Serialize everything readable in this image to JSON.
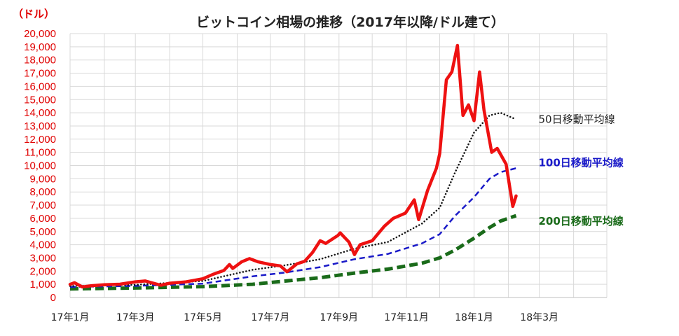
{
  "chart_data": {
    "type": "line",
    "title": "ビットコイン相場の推移（2017年以降/ドル建て）",
    "unit_label": "（ドル）",
    "ylim": [
      0,
      20000
    ],
    "y_ticks": [
      "0",
      "1,000",
      "2,000",
      "3,000",
      "4,000",
      "5,000",
      "6,000",
      "7,000",
      "8,000",
      "9,000",
      "10,000",
      "11,000",
      "12,000",
      "13,000",
      "14,000",
      "15,000",
      "16,000",
      "17,000",
      "18,000",
      "19,000",
      "20,000"
    ],
    "x_ticks": [
      "17年1月",
      "17年3月",
      "17年5月",
      "17年7月",
      "17年9月",
      "17年11月",
      "18年1月",
      "18年3月"
    ],
    "grid": true,
    "series": [
      {
        "name": "",
        "color": "#ee1111",
        "style": "solid",
        "points": [
          [
            "2017-01-01",
            998
          ],
          [
            "2017-01-05",
            1120
          ],
          [
            "2017-01-12",
            800
          ],
          [
            "2017-01-20",
            890
          ],
          [
            "2017-02-01",
            970
          ],
          [
            "2017-02-15",
            1010
          ],
          [
            "2017-03-01",
            1190
          ],
          [
            "2017-03-10",
            1250
          ],
          [
            "2017-03-24",
            930
          ],
          [
            "2017-04-01",
            1080
          ],
          [
            "2017-04-15",
            1180
          ],
          [
            "2017-05-01",
            1420
          ],
          [
            "2017-05-10",
            1750
          ],
          [
            "2017-05-20",
            2050
          ],
          [
            "2017-05-25",
            2500
          ],
          [
            "2017-05-28",
            2200
          ],
          [
            "2017-06-05",
            2700
          ],
          [
            "2017-06-12",
            2950
          ],
          [
            "2017-06-20",
            2700
          ],
          [
            "2017-07-01",
            2500
          ],
          [
            "2017-07-10",
            2400
          ],
          [
            "2017-07-16",
            1950
          ],
          [
            "2017-07-25",
            2550
          ],
          [
            "2017-08-01",
            2750
          ],
          [
            "2017-08-08",
            3400
          ],
          [
            "2017-08-15",
            4300
          ],
          [
            "2017-08-20",
            4100
          ],
          [
            "2017-08-31",
            4700
          ],
          [
            "2017-09-02",
            4900
          ],
          [
            "2017-09-10",
            4200
          ],
          [
            "2017-09-15",
            3250
          ],
          [
            "2017-09-20",
            4000
          ],
          [
            "2017-10-01",
            4300
          ],
          [
            "2017-10-12",
            5400
          ],
          [
            "2017-10-20",
            6000
          ],
          [
            "2017-10-31",
            6400
          ],
          [
            "2017-11-08",
            7400
          ],
          [
            "2017-11-12",
            5900
          ],
          [
            "2017-11-20",
            8100
          ],
          [
            "2017-11-28",
            9800
          ],
          [
            "2017-12-01",
            10900
          ],
          [
            "2017-12-07",
            16500
          ],
          [
            "2017-12-12",
            17100
          ],
          [
            "2017-12-17",
            19100
          ],
          [
            "2017-12-22",
            13800
          ],
          [
            "2017-12-27",
            14600
          ],
          [
            "2018-01-01",
            13400
          ],
          [
            "2018-01-06",
            17100
          ],
          [
            "2018-01-10",
            14200
          ],
          [
            "2018-01-17",
            11000
          ],
          [
            "2018-01-22",
            11300
          ],
          [
            "2018-01-30",
            10100
          ],
          [
            "2018-02-05",
            6900
          ],
          [
            "2018-02-08",
            7700
          ]
        ]
      },
      {
        "name": "50日移動平均線",
        "color": "#111111",
        "style": "dotted",
        "points": [
          [
            "2017-01-01",
            870
          ],
          [
            "2017-03-01",
            960
          ],
          [
            "2017-05-01",
            1250
          ],
          [
            "2017-06-15",
            2100
          ],
          [
            "2017-07-15",
            2450
          ],
          [
            "2017-08-15",
            2900
          ],
          [
            "2017-09-15",
            3700
          ],
          [
            "2017-10-15",
            4200
          ],
          [
            "2017-11-15",
            5600
          ],
          [
            "2017-12-01",
            6800
          ],
          [
            "2017-12-15",
            9500
          ],
          [
            "2018-01-01",
            12500
          ],
          [
            "2018-01-15",
            13800
          ],
          [
            "2018-01-25",
            14000
          ],
          [
            "2018-02-08",
            13500
          ]
        ]
      },
      {
        "name": "100日移動平均線",
        "color": "#1a1ac8",
        "style": "dashed",
        "points": [
          [
            "2017-01-01",
            800
          ],
          [
            "2017-03-01",
            880
          ],
          [
            "2017-05-01",
            1050
          ],
          [
            "2017-06-15",
            1600
          ],
          [
            "2017-07-15",
            1900
          ],
          [
            "2017-08-15",
            2300
          ],
          [
            "2017-09-15",
            2900
          ],
          [
            "2017-10-15",
            3300
          ],
          [
            "2017-11-15",
            4100
          ],
          [
            "2017-12-01",
            4800
          ],
          [
            "2017-12-15",
            6200
          ],
          [
            "2018-01-01",
            7600
          ],
          [
            "2018-01-15",
            9000
          ],
          [
            "2018-01-25",
            9500
          ],
          [
            "2018-02-08",
            9800
          ]
        ]
      },
      {
        "name": "200日移動平均線",
        "color": "#1a6b1a",
        "style": "dashed-thick",
        "points": [
          [
            "2017-01-01",
            650
          ],
          [
            "2017-03-01",
            720
          ],
          [
            "2017-05-01",
            820
          ],
          [
            "2017-06-15",
            1000
          ],
          [
            "2017-07-15",
            1250
          ],
          [
            "2017-08-15",
            1500
          ],
          [
            "2017-09-15",
            1850
          ],
          [
            "2017-10-15",
            2150
          ],
          [
            "2017-11-15",
            2600
          ],
          [
            "2017-12-01",
            3000
          ],
          [
            "2017-12-15",
            3600
          ],
          [
            "2018-01-01",
            4500
          ],
          [
            "2018-01-15",
            5300
          ],
          [
            "2018-01-25",
            5800
          ],
          [
            "2018-02-08",
            6200
          ]
        ]
      }
    ]
  }
}
